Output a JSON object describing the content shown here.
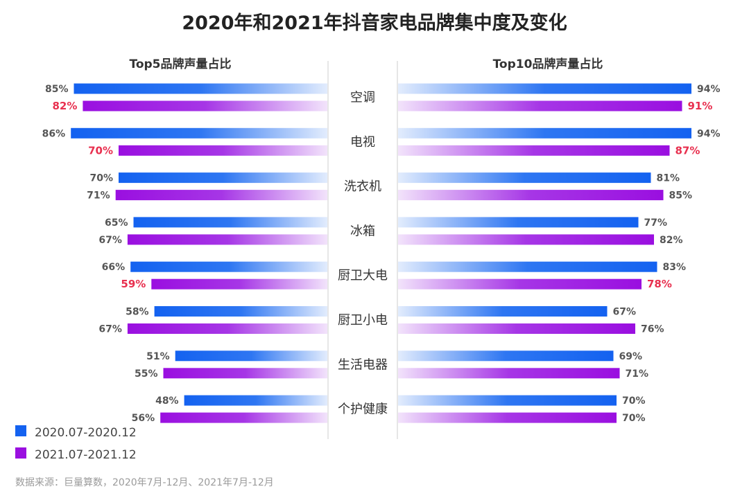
{
  "chart_data": {
    "type": "bar",
    "title": "2020年和2021年抖音家电品牌集中度及变化",
    "left_panel_title": "Top5品牌声量占比",
    "right_panel_title": "Top10品牌声量占比",
    "categories": [
      "空调",
      "电视",
      "洗衣机",
      "冰箱",
      "厨卫大电",
      "厨卫小电",
      "生活电器",
      "个护健康"
    ],
    "series": [
      {
        "name": "2020.07-2020.12",
        "color": "#1462f0",
        "top5": [
          85,
          86,
          70,
          65,
          66,
          58,
          51,
          48
        ],
        "top10": [
          94,
          94,
          81,
          77,
          83,
          67,
          69,
          70
        ]
      },
      {
        "name": "2021.07-2021.12",
        "color": "#9a0fe0",
        "top5": [
          82,
          70,
          71,
          67,
          59,
          67,
          55,
          56
        ],
        "top10": [
          91,
          87,
          85,
          82,
          78,
          76,
          71,
          70
        ]
      }
    ],
    "highlight_top5": [
      true,
      true,
      false,
      false,
      true,
      false,
      false,
      false
    ],
    "highlight_top10": [
      true,
      true,
      false,
      false,
      true,
      false,
      false,
      false
    ],
    "value_suffix": "%",
    "xlim": [
      0,
      100
    ],
    "legend_position": "bottom-left",
    "source": "数据来源：巨量算数，2020年7月-12月、2021年7月-12月"
  }
}
